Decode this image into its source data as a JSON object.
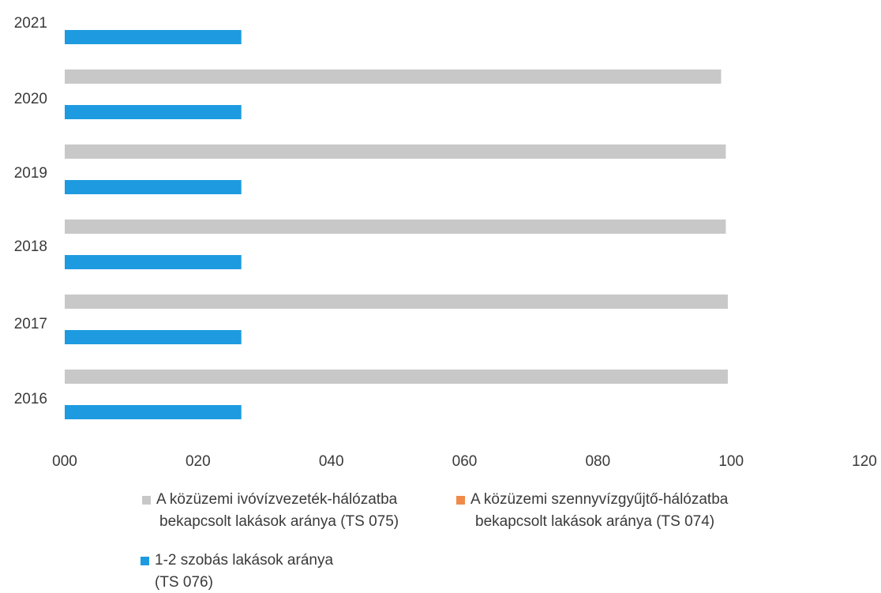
{
  "chart_data": {
    "type": "bar",
    "orientation": "horizontal",
    "categories": [
      "2021",
      "2020",
      "2019",
      "2018",
      "2017",
      "2016"
    ],
    "series": [
      {
        "name": "A közüzemi ivóvízvezeték-hálózatba bekapcsolt lakások aránya (TS 075)",
        "name_lines": [
          "A közüzemi ivóvízvezeték-hálózatba",
          "bekapcsolt lakások aránya (TS 075)"
        ],
        "color": "#c8c8c8",
        "values": [
          null,
          98.5,
          99.2,
          99.2,
          99.5,
          99.5
        ]
      },
      {
        "name": "A közüzemi szennyvízgyűjtő-hálózatba bekapcsolt lakások aránya (TS 074)",
        "name_lines": [
          "A közüzemi szennyvízgyűjtő-hálózatba",
          "bekapcsolt lakások aránya (TS 074)"
        ],
        "color": "#f08a4b",
        "values": [
          null,
          null,
          null,
          null,
          null,
          null
        ]
      },
      {
        "name": "1-2 szobás lakások aránya (TS 076)",
        "name_lines": [
          "1-2 szobás lakások aránya",
          "(TS 076)"
        ],
        "color": "#1e9be0",
        "values": [
          26.5,
          26.5,
          26.5,
          26.5,
          26.5,
          26.5
        ]
      }
    ],
    "xlim": [
      0,
      120
    ],
    "xticks": [
      0,
      20,
      40,
      60,
      80,
      100,
      120
    ],
    "xtick_labels": [
      "000",
      "020",
      "040",
      "060",
      "080",
      "100",
      "120"
    ],
    "grid": false,
    "legend_position": "bottom",
    "title": "",
    "xlabel": "",
    "ylabel": ""
  }
}
